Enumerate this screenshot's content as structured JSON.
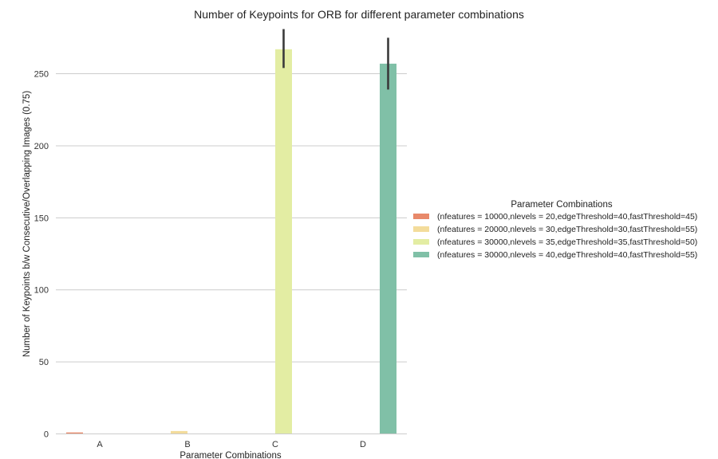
{
  "chart_data": {
    "type": "bar",
    "title": "Number of Keypoints for ORB for different parameter combinations",
    "xlabel": "Parameter Combinations",
    "ylabel": "Number of Keypoints b/w Consecutive/Overlapping Images (0.75)",
    "categories": [
      "A",
      "B",
      "C",
      "D"
    ],
    "ylim": [
      0,
      280
    ],
    "yticks": [
      0,
      50,
      100,
      150,
      200,
      250
    ],
    "grid": true,
    "legend": {
      "title": "Parameter Combinations",
      "placement": "right"
    },
    "series": [
      {
        "name": "(nfeatures = 10000,nlevels = 20,edgeThreshold=40,fastThreshold=45)",
        "color": "#e8896a",
        "values": [
          1,
          null,
          null,
          null
        ],
        "ci": [
          null,
          null,
          null,
          null
        ]
      },
      {
        "name": "(nfeatures = 20000,nlevels = 30,edgeThreshold=30,fastThreshold=55)",
        "color": "#f3dc9b",
        "values": [
          null,
          2,
          null,
          null
        ],
        "ci": [
          null,
          null,
          null,
          null
        ]
      },
      {
        "name": "(nfeatures = 30000,nlevels = 35,edgeThreshold=35,fastThreshold=50)",
        "color": "#e3eda3",
        "values": [
          null,
          null,
          267,
          null
        ],
        "ci": [
          null,
          null,
          [
            254,
            281
          ],
          null
        ]
      },
      {
        "name": "(nfeatures = 30000,nlevels = 40,edgeThreshold=40,fastThreshold=55)",
        "color": "#80c0a7",
        "values": [
          null,
          null,
          null,
          257
        ],
        "ci": [
          null,
          null,
          null,
          [
            239,
            275
          ]
        ]
      }
    ]
  }
}
